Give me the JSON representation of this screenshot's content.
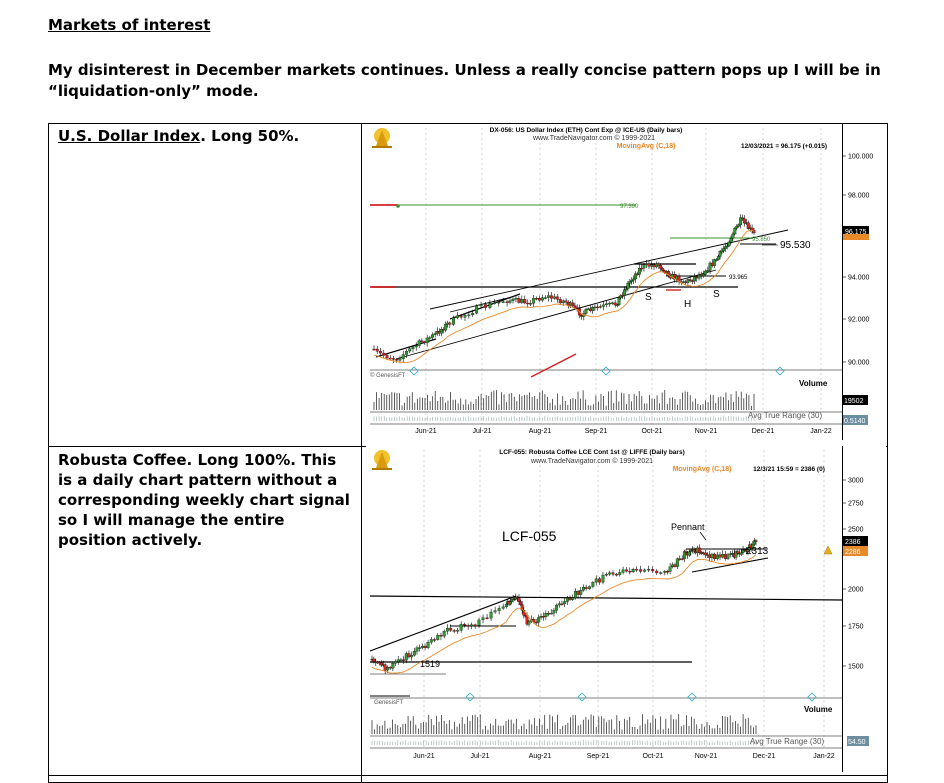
{
  "heading": "Markets of interest",
  "intro": "My disinterest in December markets continues. Unless a really concise pattern pops up I will be in “liquidation-only” mode.",
  "rows": [
    {
      "market": "U.S. Dollar Index",
      "position": ". Long 50%.",
      "chart": {
        "title": "DX-056: US Dollar Index (ETH) Cont Exp @ ICE-US (Daily bars)",
        "source": "www.TradeNavigator.com © 1999-2021",
        "ma_label": "MovingAvg (C,18)",
        "date_value": "12/03/2021 = 96.175 (+0.015)",
        "y_ticks": [
          "100.000",
          "98.000",
          "96.000",
          "94.000",
          "92.000",
          "90.000"
        ],
        "last_price_badge": "96.175",
        "annotations": [
          "97.390",
          "95.850",
          "95.530",
          "93.965",
          "S",
          "H",
          "S"
        ],
        "volume_label": "Volume",
        "volume_badge": "19502",
        "atr_label": "Avg True Range (30)",
        "atr_badge": "0.5140",
        "watermark": "© GenesisFT",
        "x_ticks": [
          "Jun-21",
          "Jul-21",
          "Aug-21",
          "Sep-21",
          "Oct-21",
          "Nov-21",
          "Dec-21",
          "Jan-22"
        ]
      }
    },
    {
      "market": "Robusta Coffee. Long 100%. This is a daily chart pattern without a corresponding weekly chart signal so I will manage the entire position actively.",
      "chart": {
        "title": "LCF-055: Robusta Coffee LCE Cont 1st @ LIFFE (Daily bars)",
        "source": "www.TradeNavigator.com © 1999-2021",
        "ma_label": "MovingAvg (C,18)",
        "date_value": "12/3/21 15:59 = 2386 (0)",
        "y_ticks": [
          "3000",
          "2750",
          "2500",
          "2250",
          "2000",
          "1750",
          "1500"
        ],
        "last_price_badge": "2386",
        "ma_badge": "2286",
        "chart_label": "LCF-055",
        "annotations": [
          "Pennant",
          "2313",
          "1519"
        ],
        "volume_label": "Volume",
        "atr_label": "Avg True Range (30)",
        "atr_badge": "54.50",
        "watermark": "GenesisFT",
        "x_ticks": [
          "Jun-21",
          "Jul-21",
          "Aug-21",
          "Sep-21",
          "Oct-21",
          "Nov-21",
          "Dec-21",
          "Jan-22"
        ]
      }
    }
  ]
}
